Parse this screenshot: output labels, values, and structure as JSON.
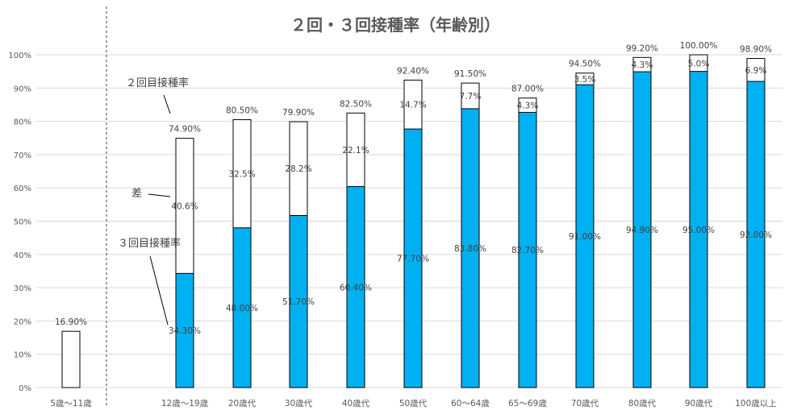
{
  "chart_data": {
    "type": "bar",
    "title": "２回・３回接種率（年齢別）",
    "categories": [
      "5歳～11歳",
      "12歳～19歳",
      "20歳代",
      "30歳代",
      "40歳代",
      "50歳代",
      "60～64歳",
      "65～69歳",
      "70歳代",
      "80歳代",
      "90歳代",
      "100歳以上"
    ],
    "series": [
      {
        "name": "３回目接種率",
        "values": [
          null,
          34.3,
          48.0,
          51.7,
          60.4,
          77.7,
          83.8,
          82.7,
          91.0,
          94.9,
          95.0,
          92.0
        ]
      },
      {
        "name": "差",
        "values": [
          null,
          40.6,
          32.5,
          28.2,
          22.1,
          14.7,
          7.7,
          4.3,
          3.5,
          4.3,
          5.0,
          6.9
        ]
      },
      {
        "name": "２回目接種率",
        "values": [
          16.9,
          74.9,
          80.5,
          79.9,
          82.5,
          92.4,
          91.5,
          87.0,
          94.5,
          99.2,
          100.0,
          98.9
        ]
      }
    ],
    "labels": {
      "third": [
        "",
        "34.30%",
        "48.00%",
        "51.70%",
        "60.40%",
        "77.70%",
        "83.80%",
        "82.70%",
        "91.00%",
        "94.90%",
        "95.00%",
        "92.00%"
      ],
      "diff": [
        "",
        "40.6%",
        "32.5%",
        "28.2%",
        "22.1%",
        "14.7%",
        "7.7%",
        "4.3%",
        "3.5%",
        "4.3%",
        "5.0%",
        "6.9%"
      ],
      "second": [
        "16.90%",
        "74.90%",
        "80.50%",
        "79.90%",
        "82.50%",
        "92.40%",
        "91.50%",
        "87.00%",
        "94.50%",
        "99.20%",
        "100.00%",
        "98.90%"
      ]
    },
    "yticks": [
      "0%",
      "10%",
      "20%",
      "30%",
      "40%",
      "50%",
      "60%",
      "70%",
      "80%",
      "90%",
      "100%"
    ],
    "ylim": [
      0,
      100
    ],
    "annotations": {
      "second": "２回目接種率",
      "diff": "差",
      "third": "３回目接種率"
    },
    "grid": true,
    "colors": {
      "third": "#00B0F0",
      "outline": "#000000",
      "grid": "#D9D9D9",
      "text": "#595959"
    }
  }
}
